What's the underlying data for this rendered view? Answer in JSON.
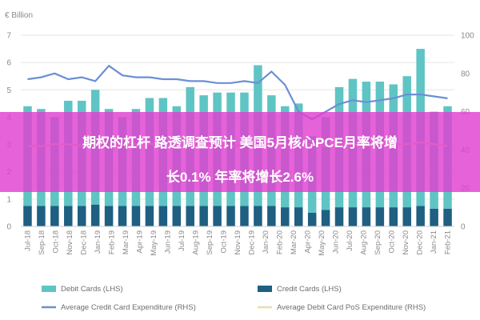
{
  "chart_data": {
    "type": "bar",
    "title": "",
    "unit_label": "€ Billion",
    "categories": [
      "Jul-18",
      "Aug-18",
      "Sep-18",
      "Oct-18",
      "Nov-18",
      "Dec-18",
      "Jan-19",
      "Feb-19",
      "Mar-19",
      "Apr-19",
      "May-19",
      "Jun-19",
      "Jul-19",
      "Aug-19",
      "Sep-19",
      "Oct-19",
      "Nov-19",
      "Dec-19",
      "Jan-20",
      "Feb-20",
      "Mar-20",
      "Apr-20",
      "May-20",
      "Jun-20",
      "Jul-20",
      "Aug-20",
      "Sep-20",
      "Oct-20",
      "Nov-20",
      "Dec-20",
      "Jan-21",
      "Feb-21"
    ],
    "tick_labels": [
      "Jul-18",
      "Sep-18",
      "Oct-18",
      "Nov-18",
      "Dec-18",
      "Jan-19",
      "Feb-19",
      "Mar-19",
      "Apr-19",
      "May-19",
      "Jun-19",
      "Jul-19",
      "Aug-19",
      "Sep-19",
      "Oct-19",
      "Nov-19",
      "Dec-19",
      "Jan-20",
      "Feb-20",
      "Mar-20",
      "Apr-20",
      "May-20",
      "Jun-20",
      "Jul-20",
      "Aug-20",
      "Sep-20",
      "Oct-20",
      "Nov-20",
      "Dec-20",
      "Jan-21",
      "Feb-21"
    ],
    "series": [
      {
        "name": "Debit Cards (LHS)",
        "type": "bar",
        "axis": "left",
        "color": "#5fc4c4",
        "values": [
          4.4,
          4.3,
          4.0,
          4.6,
          4.6,
          5.0,
          4.3,
          4.0,
          4.3,
          4.7,
          4.7,
          4.4,
          5.1,
          4.8,
          4.9,
          4.9,
          4.9,
          5.9,
          4.8,
          4.4,
          4.5,
          3.3,
          4.0,
          5.1,
          5.4,
          5.3,
          5.3,
          5.2,
          5.5,
          6.5,
          4.2,
          4.4
        ]
      },
      {
        "name": "Credit Cards (LHS)",
        "type": "bar",
        "axis": "left",
        "color": "#1e5f82",
        "values": [
          0.75,
          0.75,
          0.75,
          0.75,
          0.75,
          0.8,
          0.75,
          0.75,
          0.75,
          0.75,
          0.75,
          0.75,
          0.75,
          0.75,
          0.75,
          0.75,
          0.75,
          0.75,
          0.75,
          0.7,
          0.7,
          0.5,
          0.6,
          0.7,
          0.7,
          0.7,
          0.7,
          0.7,
          0.7,
          0.75,
          0.65,
          0.65
        ]
      },
      {
        "name": "Average Credit Card Expenditure (RHS)",
        "type": "line",
        "axis": "right",
        "color": "#6b8fd6",
        "values": [
          77,
          78,
          80,
          77,
          78,
          76,
          84,
          79,
          78,
          78,
          77,
          77,
          76,
          76,
          75,
          75,
          76,
          75,
          81,
          74,
          60,
          56,
          60,
          64,
          66,
          65,
          66,
          67,
          69,
          69,
          68,
          67
        ]
      },
      {
        "name": "Average Debit Card PoS Expenditure (RHS)",
        "type": "line",
        "axis": "right",
        "color": "#e8ddb0",
        "values": [
          42,
          42,
          43,
          43,
          42,
          43,
          42,
          43,
          43,
          43,
          43,
          43,
          43,
          43,
          43,
          42,
          42,
          42,
          43,
          43,
          43,
          43,
          42,
          43,
          43,
          42,
          43,
          43,
          43,
          44,
          43,
          42
        ]
      }
    ],
    "ylim_left": [
      0,
      7
    ],
    "yticks_left": [
      0,
      1,
      2,
      3,
      4,
      5,
      6,
      7
    ],
    "ylim_right": [
      0,
      100
    ],
    "yticks_right": [
      0,
      20,
      40,
      60,
      80,
      100
    ],
    "grid": true,
    "legend_position": "bottom"
  },
  "overlay": {
    "line1": "期权的杠杆 路透调查预计 美国5月核心PCE月率将增",
    "line2": "长0.1% 年率将增长2.6%",
    "background": "#e040d0"
  }
}
